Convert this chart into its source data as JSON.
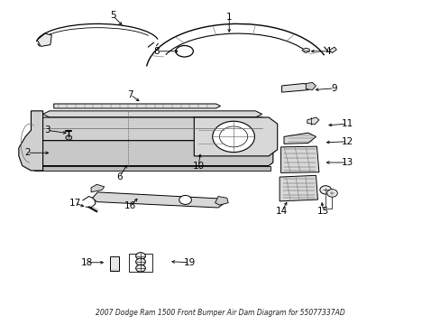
{
  "title": "2007 Dodge Ram 1500 Front Bumper Air Dam Diagram for 55077337AD",
  "bg_color": "#ffffff",
  "line_color": "#000000",
  "label_color": "#000000",
  "fig_width": 4.89,
  "fig_height": 3.6,
  "dpi": 100,
  "font_size_label": 7.5,
  "font_size_title": 5.5,
  "callouts": {
    "1": [
      0.52,
      0.95,
      0.52,
      0.895
    ],
    "2": [
      0.06,
      0.53,
      0.115,
      0.53
    ],
    "3": [
      0.105,
      0.6,
      0.155,
      0.59
    ],
    "4": [
      0.745,
      0.845,
      0.7,
      0.845
    ],
    "5": [
      0.255,
      0.955,
      0.28,
      0.92
    ],
    "6": [
      0.27,
      0.455,
      0.29,
      0.5
    ],
    "7": [
      0.295,
      0.71,
      0.32,
      0.685
    ],
    "8": [
      0.355,
      0.845,
      0.41,
      0.845
    ],
    "9": [
      0.76,
      0.73,
      0.71,
      0.725
    ],
    "10": [
      0.45,
      0.49,
      0.455,
      0.535
    ],
    "11": [
      0.79,
      0.62,
      0.74,
      0.615
    ],
    "12": [
      0.79,
      0.565,
      0.735,
      0.562
    ],
    "13": [
      0.79,
      0.5,
      0.735,
      0.5
    ],
    "14": [
      0.64,
      0.35,
      0.655,
      0.385
    ],
    "15": [
      0.735,
      0.35,
      0.73,
      0.385
    ],
    "16": [
      0.295,
      0.365,
      0.315,
      0.395
    ],
    "17": [
      0.168,
      0.375,
      0.195,
      0.36
    ],
    "18": [
      0.195,
      0.19,
      0.24,
      0.19
    ],
    "19": [
      0.43,
      0.19,
      0.382,
      0.193
    ]
  }
}
